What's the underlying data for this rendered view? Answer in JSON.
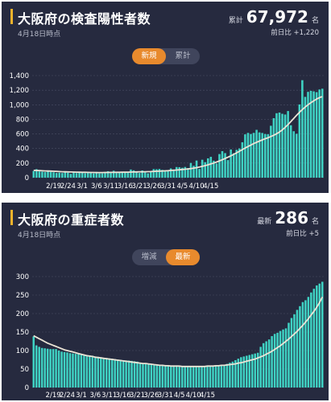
{
  "panels": [
    {
      "title": "大阪府の検査陽性者数",
      "as_of": "4月18日時点",
      "stat_label": "累計",
      "stat_value": "67,972",
      "stat_unit": "名",
      "sub_label": "前日比 +1,220",
      "toggle": [
        "新規",
        "累計"
      ],
      "toggle_active": 0
    },
    {
      "title": "大阪府の重症者数",
      "as_of": "4月18日時点",
      "stat_label": "最新",
      "stat_value": "286",
      "stat_unit": "名",
      "sub_label": "前日比 +5",
      "toggle": [
        "増減",
        "最新"
      ],
      "toggle_active": 1
    }
  ],
  "colors": {
    "background": "#262a3f",
    "bar": "#3fd3c4",
    "average_line": "#ece4d6",
    "accent": "#f2b32b",
    "toggle_active": "#e88a2d",
    "grid": "#4a4f66",
    "tick_text": "#ffffff"
  },
  "chart_data": [
    {
      "type": "bar",
      "x_tick_labels": [
        "2/19",
        "2/24",
        "3/1",
        "3/6",
        "3/11",
        "3/16",
        "3/21",
        "3/26",
        "3/31",
        "4/5",
        "4/10",
        "4/15"
      ],
      "y_ticks": [
        0,
        200,
        400,
        600,
        800,
        1000,
        1200,
        1400
      ],
      "y_tick_labels": [
        "0",
        "200",
        "400",
        "600",
        "800",
        "1,000",
        "1,200",
        "1,400"
      ],
      "ylim": [
        0,
        1400
      ],
      "series": [
        {
          "type": "bar",
          "values": [
            92,
            117,
            86,
            82,
            77,
            89,
            80,
            75,
            65,
            69,
            64,
            74,
            68,
            52,
            72,
            64,
            70,
            71,
            61,
            74,
            72,
            59,
            80,
            59,
            59,
            79,
            89,
            79,
            95,
            65,
            69,
            72,
            79,
            80,
            112,
            101,
            88,
            65,
            99,
            71,
            60,
            84,
            118,
            116,
            120,
            107,
            96,
            97,
            127,
            109,
            146,
            144,
            136,
            147,
            131,
            202,
            163,
            235,
            120,
            246,
            213,
            265,
            286,
            233,
            195,
            324,
            364,
            337,
            241,
            387,
            336,
            382,
            401,
            486,
            594,
            614,
            599,
            614,
            656,
            621,
            613,
            599,
            596,
            712,
            816,
            884,
            893,
            876,
            866,
            914,
            719,
            637,
            602,
            1004,
            1337,
            1108,
            1177,
            1191,
            1184,
            1173,
            1209,
            1220
          ]
        },
        {
          "type": "line",
          "values": [
            100,
            99,
            97,
            95,
            93,
            92,
            90,
            88,
            86,
            84,
            82,
            80,
            79,
            78,
            77,
            76,
            75,
            74,
            74,
            73,
            72,
            72,
            71,
            71,
            71,
            72,
            72,
            73,
            73,
            74,
            74,
            75,
            75,
            76,
            77,
            78,
            79,
            80,
            81,
            82,
            83,
            84,
            86,
            88,
            90,
            92,
            94,
            96,
            99,
            102,
            105,
            108,
            112,
            116,
            120,
            125,
            131,
            138,
            146,
            155,
            165,
            176,
            188,
            201,
            215,
            230,
            246,
            263,
            281,
            300,
            320,
            341,
            363,
            385,
            407,
            428,
            448,
            467,
            485,
            502,
            518,
            533,
            548,
            564,
            582,
            602,
            626,
            655,
            690,
            728,
            770,
            812,
            855,
            896,
            934,
            968,
            1000,
            1028,
            1054,
            1078,
            1098,
            1112
          ]
        }
      ]
    },
    {
      "type": "bar",
      "x_tick_labels": [
        "2/19",
        "2/24",
        "3/1",
        "3/6",
        "3/11",
        "3/16",
        "3/21",
        "3/26",
        "3/31",
        "4/5",
        "4/10",
        "4/15"
      ],
      "y_ticks": [
        0,
        50,
        100,
        150,
        200,
        250,
        300
      ],
      "y_tick_labels": [
        "0",
        "50",
        "100",
        "150",
        "200",
        "250",
        "300"
      ],
      "ylim": [
        0,
        300
      ],
      "series": [
        {
          "type": "bar",
          "values": [
            138,
            114,
            110,
            107,
            106,
            105,
            104,
            104,
            104,
            100,
            97,
            96,
            95,
            93,
            92,
            91,
            91,
            90,
            89,
            88,
            87,
            86,
            84,
            83,
            82,
            80,
            80,
            79,
            78,
            77,
            76,
            75,
            74,
            73,
            73,
            72,
            71,
            70,
            67,
            66,
            65,
            64,
            63,
            62,
            62,
            62,
            61,
            61,
            60,
            60,
            60,
            60,
            59,
            58,
            58,
            57,
            57,
            57,
            57,
            57,
            57,
            58,
            58,
            58,
            58,
            59,
            59,
            60,
            61,
            64,
            67,
            70,
            74,
            78,
            82,
            84,
            86,
            88,
            90,
            92,
            94,
            110,
            120,
            125,
            130,
            139,
            145,
            148,
            153,
            157,
            160,
            175,
            188,
            198,
            210,
            220,
            231,
            236,
            245,
            257,
            267,
            276,
            281,
            286
          ]
        },
        {
          "type": "line",
          "values": [
            140,
            136,
            132,
            128,
            124,
            120,
            117,
            114,
            111,
            108,
            105,
            102,
            100,
            98,
            96,
            94,
            92,
            90,
            88,
            86,
            85,
            84,
            82,
            81,
            80,
            79,
            78,
            77,
            76,
            75,
            74,
            73,
            72,
            71,
            70,
            69,
            68,
            67,
            66,
            65,
            65,
            64,
            63,
            62,
            61,
            60,
            60,
            59,
            59,
            58,
            58,
            58,
            58,
            57,
            57,
            57,
            57,
            57,
            57,
            57,
            57,
            57,
            58,
            58,
            58,
            59,
            59,
            60,
            60,
            61,
            62,
            63,
            64,
            66,
            67,
            69,
            71,
            73,
            75,
            77,
            80,
            83,
            86,
            90,
            94,
            98,
            103,
            108,
            113,
            119,
            125,
            131,
            138,
            145,
            152,
            160,
            168,
            177,
            186,
            196,
            206,
            217,
            230,
            245
          ]
        }
      ]
    }
  ]
}
